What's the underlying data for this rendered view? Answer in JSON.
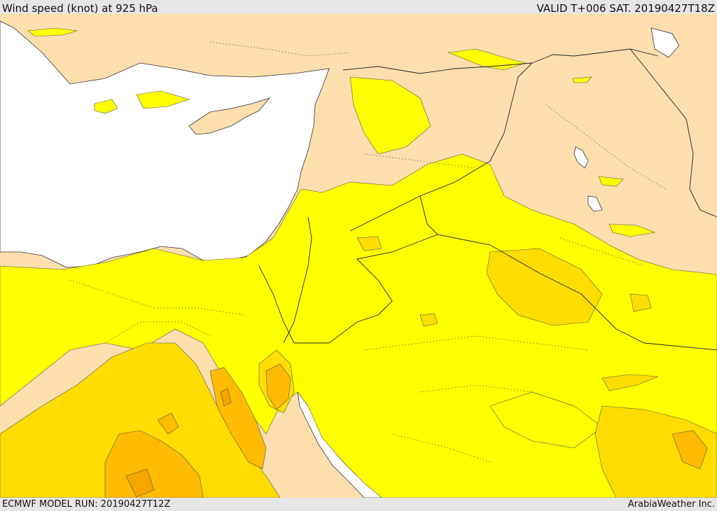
{
  "header": {
    "title": "Wind speed (knot) at 925 hPa",
    "valid": "VALID T+006 SAT. 20190427T18Z"
  },
  "footer": {
    "model_run": "ECMWF MODEL RUN: 20190427T12Z",
    "credit": "ArabiaWeather Inc."
  },
  "colors": {
    "sea": "#ffffff",
    "land": "#fddfae",
    "band1": "#ffff00",
    "band2": "#ffdd00",
    "band3": "#ffbb00",
    "band4": "#f5a700"
  }
}
